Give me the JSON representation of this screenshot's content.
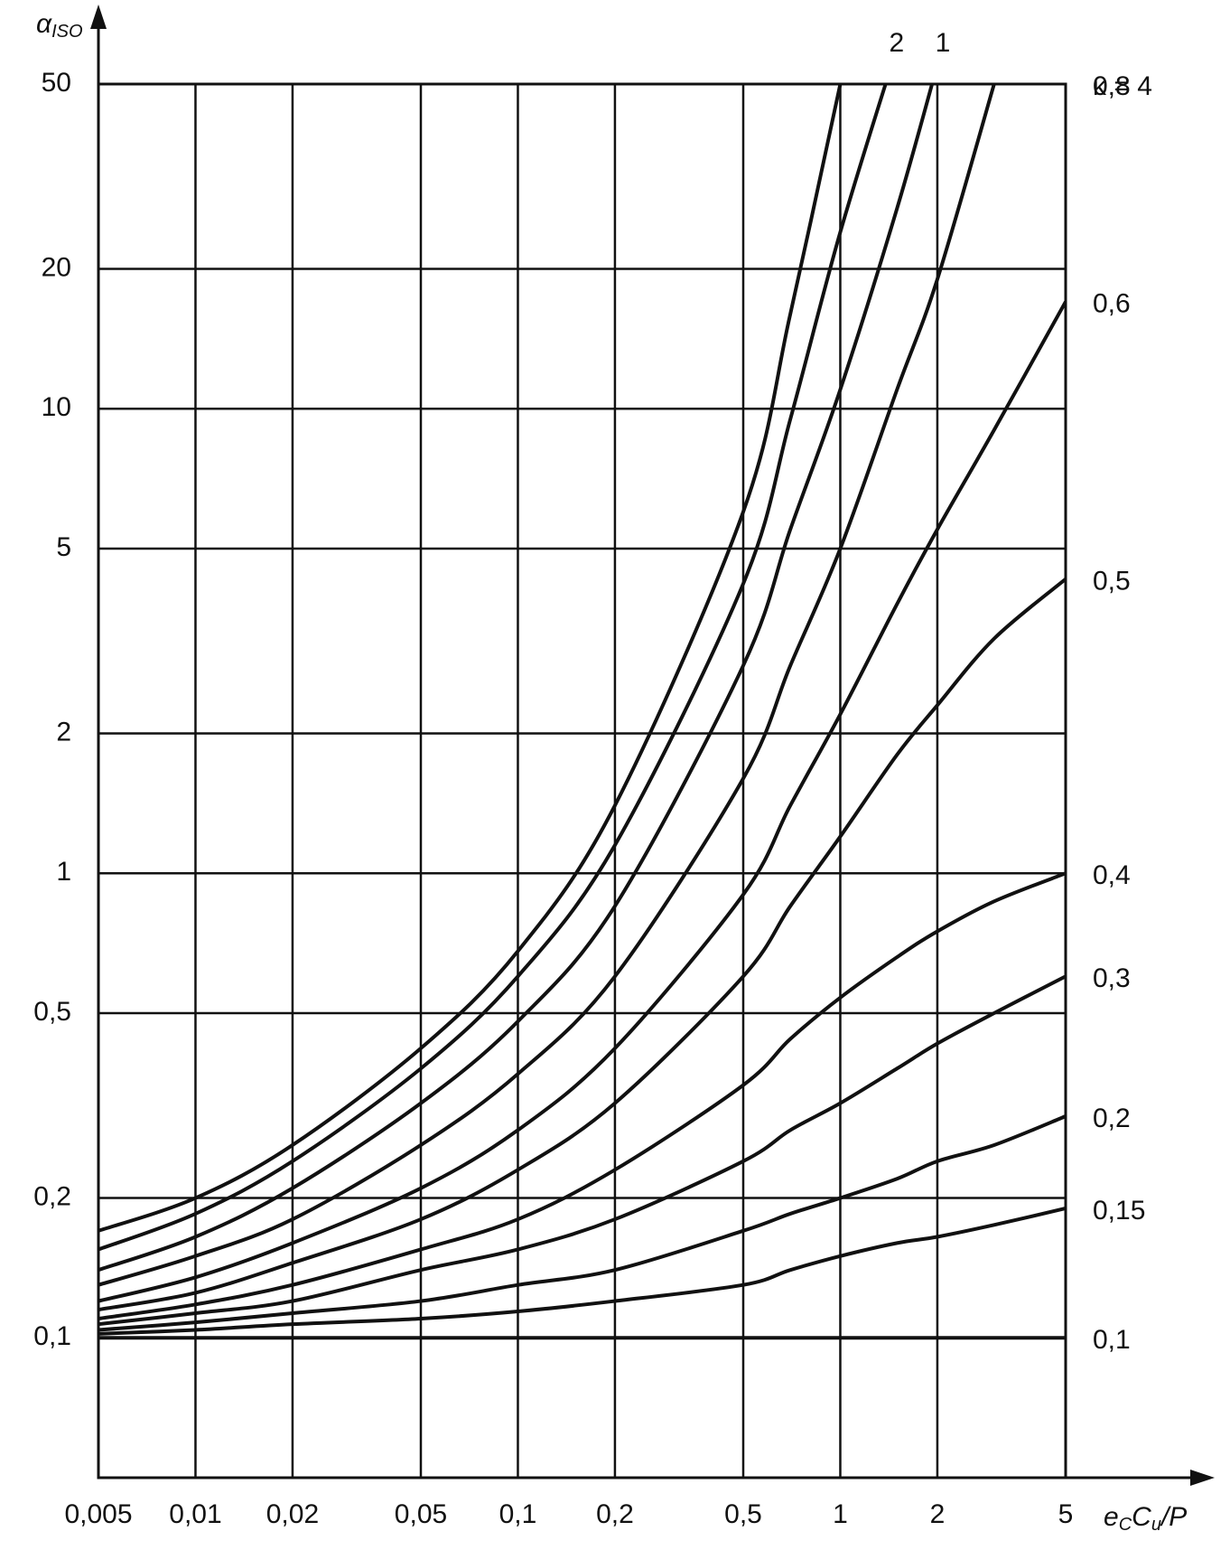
{
  "chart_data": {
    "type": "line",
    "log_x": true,
    "log_y": true,
    "grid": true,
    "y_label": {
      "main": "α",
      "sub": "ISO"
    },
    "x_label": {
      "parts": [
        "e",
        "C",
        "C",
        "u",
        "/P"
      ]
    },
    "xlim": [
      0.005,
      5
    ],
    "ylim": [
      0.05,
      50
    ],
    "xticks": [
      {
        "value": 0.005,
        "label": "0,005"
      },
      {
        "value": 0.01,
        "label": "0,01"
      },
      {
        "value": 0.02,
        "label": "0,02"
      },
      {
        "value": 0.05,
        "label": "0,05"
      },
      {
        "value": 0.1,
        "label": "0,1"
      },
      {
        "value": 0.2,
        "label": "0,2"
      },
      {
        "value": 0.5,
        "label": "0,5"
      },
      1,
      2,
      5
    ],
    "yticks": [
      {
        "value": 0.1,
        "label": "0,1"
      },
      {
        "value": 0.2,
        "label": "0,2"
      },
      {
        "value": 0.5,
        "label": "0,5"
      },
      1,
      2,
      5,
      10,
      20,
      50
    ],
    "x": [
      0.005,
      0.01,
      0.02,
      0.05,
      0.1,
      0.2,
      0.5,
      0.7,
      1,
      1.5,
      2,
      3,
      5
    ],
    "series": [
      {
        "name": "κ = 4",
        "color": "#111111",
        "values": [
          0.17,
          0.2,
          0.26,
          0.42,
          0.68,
          1.4,
          6,
          16,
          50,
          null,
          null,
          null,
          null
        ]
      },
      {
        "name": "2",
        "color": "#111111",
        "values": [
          0.155,
          0.185,
          0.24,
          0.38,
          0.6,
          1.15,
          4.2,
          9.5,
          24,
          60,
          null,
          null,
          null
        ]
      },
      {
        "name": "1",
        "color": "#111111",
        "values": [
          0.14,
          0.165,
          0.21,
          0.32,
          0.48,
          0.85,
          2.8,
          5.5,
          11,
          27,
          55,
          null,
          null
        ]
      },
      {
        "name": "0,8",
        "color": "#111111",
        "values": [
          0.13,
          0.15,
          0.18,
          0.26,
          0.37,
          0.6,
          1.6,
          2.8,
          5,
          11,
          19,
          50,
          null
        ]
      },
      {
        "name": "0,6",
        "color": "#111111",
        "values": [
          0.12,
          0.135,
          0.16,
          0.21,
          0.28,
          0.42,
          0.9,
          1.4,
          2.2,
          3.8,
          5.5,
          9,
          17
        ]
      },
      {
        "name": "0,5",
        "color": "#111111",
        "values": [
          0.115,
          0.125,
          0.145,
          0.18,
          0.23,
          0.32,
          0.6,
          0.85,
          1.2,
          1.8,
          2.3,
          3.2,
          4.3
        ]
      },
      {
        "name": "0,4",
        "color": "#111111",
        "values": [
          0.11,
          0.118,
          0.13,
          0.155,
          0.18,
          0.23,
          0.35,
          0.44,
          0.54,
          0.66,
          0.75,
          0.87,
          1.0
        ]
      },
      {
        "name": "0,3",
        "color": "#111111",
        "values": [
          0.107,
          0.113,
          0.12,
          0.14,
          0.155,
          0.18,
          0.24,
          0.28,
          0.32,
          0.38,
          0.43,
          0.5,
          0.6
        ]
      },
      {
        "name": "0,2",
        "color": "#111111",
        "values": [
          0.104,
          0.108,
          0.113,
          0.12,
          0.13,
          0.14,
          0.17,
          0.185,
          0.2,
          0.22,
          0.24,
          0.26,
          0.3
        ]
      },
      {
        "name": "0,15",
        "color": "#111111",
        "values": [
          0.102,
          0.104,
          0.107,
          0.11,
          0.114,
          0.12,
          0.13,
          0.14,
          0.15,
          0.16,
          0.165,
          0.175,
          0.19
        ]
      },
      {
        "name": "0,1",
        "color": "#111111",
        "values": [
          0.1,
          0.1,
          0.1,
          0.1,
          0.1,
          0.1,
          0.1,
          0.1,
          0.1,
          0.1,
          0.1,
          0.1,
          0.1
        ]
      }
    ]
  }
}
